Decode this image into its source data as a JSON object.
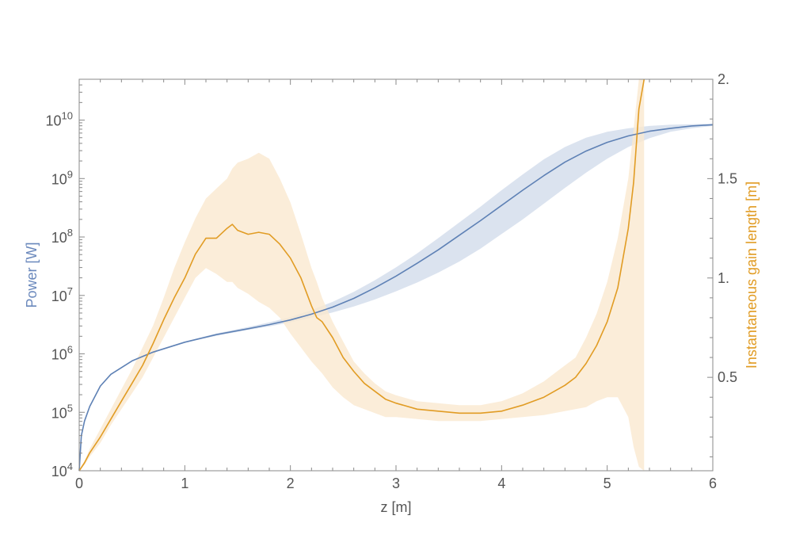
{
  "chart_data": {
    "type": "line",
    "xlabel": "z [m]",
    "ylabel_left": "Power [W]",
    "ylabel_right": "Instantaneous gain length [m]",
    "xlim": [
      0,
      6
    ],
    "ylim_left": [
      10000,
      50000000000
    ],
    "ylim_right": [
      0.03,
      2.0
    ],
    "left_scale": "log",
    "grid": false,
    "x_ticks": [
      {
        "value": 0,
        "label": "0"
      },
      {
        "value": 1,
        "label": "1"
      },
      {
        "value": 2,
        "label": "2"
      },
      {
        "value": 3,
        "label": "3"
      },
      {
        "value": 4,
        "label": "4"
      },
      {
        "value": 5,
        "label": "5"
      },
      {
        "value": 6,
        "label": "6"
      }
    ],
    "left_ticks": [
      {
        "exp": 4,
        "base": "10",
        "sup": "4"
      },
      {
        "exp": 5,
        "base": "10",
        "sup": "5"
      },
      {
        "exp": 6,
        "base": "10",
        "sup": "6"
      },
      {
        "exp": 7,
        "base": "10",
        "sup": "7"
      },
      {
        "exp": 8,
        "base": "10",
        "sup": "8"
      },
      {
        "exp": 9,
        "base": "10",
        "sup": "9"
      },
      {
        "exp": 10,
        "base": "10",
        "sup": "10"
      }
    ],
    "right_ticks": [
      {
        "value": 0.5,
        "label": "0.5"
      },
      {
        "value": 1.0,
        "label": "1."
      },
      {
        "value": 1.5,
        "label": "1.5"
      },
      {
        "value": 2.0,
        "label": "2."
      }
    ],
    "series": [
      {
        "axis": "left",
        "color": "#5E81B5",
        "band_color": "#D5DEEC",
        "x": [
          0,
          0.02,
          0.05,
          0.1,
          0.2,
          0.3,
          0.5,
          0.7,
          1.0,
          1.3,
          1.6,
          1.8,
          2.0,
          2.2,
          2.4,
          2.6,
          2.8,
          3.0,
          3.2,
          3.4,
          3.6,
          3.8,
          4.0,
          4.2,
          4.4,
          4.6,
          4.8,
          5.0,
          5.2,
          5.4,
          5.6,
          5.8,
          6.0
        ],
        "log10_y": [
          4.0,
          4.6,
          4.85,
          5.1,
          5.45,
          5.65,
          5.88,
          6.03,
          6.2,
          6.33,
          6.43,
          6.5,
          6.58,
          6.68,
          6.8,
          6.95,
          7.13,
          7.33,
          7.55,
          7.78,
          8.03,
          8.28,
          8.54,
          8.8,
          9.05,
          9.28,
          9.47,
          9.62,
          9.73,
          9.81,
          9.86,
          9.9,
          9.92
        ],
        "log10_band_low": [
          4.0,
          4.6,
          4.85,
          5.1,
          5.45,
          5.65,
          5.88,
          6.03,
          6.19,
          6.31,
          6.41,
          6.47,
          6.54,
          6.62,
          6.71,
          6.81,
          6.93,
          7.07,
          7.22,
          7.39,
          7.58,
          7.8,
          8.05,
          8.3,
          8.57,
          8.84,
          9.1,
          9.34,
          9.54,
          9.69,
          9.8,
          9.86,
          9.9
        ],
        "log10_band_high": [
          4.0,
          4.6,
          4.85,
          5.1,
          5.45,
          5.65,
          5.88,
          6.04,
          6.21,
          6.35,
          6.46,
          6.54,
          6.63,
          6.75,
          6.89,
          7.06,
          7.26,
          7.48,
          7.72,
          7.98,
          8.25,
          8.52,
          8.8,
          9.07,
          9.33,
          9.54,
          9.7,
          9.8,
          9.86,
          9.9,
          9.92,
          9.93,
          9.94
        ]
      },
      {
        "axis": "right",
        "color": "#E19C24",
        "band_color": "#FAE9CF",
        "x": [
          0,
          0.05,
          0.1,
          0.2,
          0.3,
          0.4,
          0.5,
          0.6,
          0.7,
          0.8,
          0.9,
          1.0,
          1.1,
          1.2,
          1.3,
          1.4,
          1.45,
          1.5,
          1.6,
          1.7,
          1.8,
          1.9,
          2.0,
          2.1,
          2.2,
          2.25,
          2.3,
          2.4,
          2.5,
          2.6,
          2.7,
          2.8,
          2.9,
          3.0,
          3.2,
          3.4,
          3.6,
          3.8,
          4.0,
          4.2,
          4.4,
          4.5,
          4.6,
          4.7,
          4.8,
          4.9,
          5.0,
          5.1,
          5.2,
          5.25,
          5.3,
          5.35
        ],
        "y": [
          0.03,
          0.07,
          0.12,
          0.2,
          0.29,
          0.38,
          0.47,
          0.56,
          0.67,
          0.79,
          0.9,
          1.0,
          1.12,
          1.2,
          1.2,
          1.25,
          1.27,
          1.24,
          1.22,
          1.23,
          1.22,
          1.17,
          1.1,
          1.0,
          0.86,
          0.8,
          0.78,
          0.7,
          0.6,
          0.53,
          0.47,
          0.43,
          0.39,
          0.37,
          0.34,
          0.33,
          0.32,
          0.32,
          0.33,
          0.36,
          0.4,
          0.43,
          0.46,
          0.5,
          0.57,
          0.66,
          0.78,
          0.95,
          1.25,
          1.48,
          1.85,
          2.05
        ],
        "band_low": [
          0.03,
          0.06,
          0.1,
          0.17,
          0.26,
          0.34,
          0.42,
          0.5,
          0.6,
          0.7,
          0.8,
          0.9,
          1.0,
          1.05,
          1.02,
          0.98,
          0.98,
          0.95,
          0.92,
          0.88,
          0.85,
          0.8,
          0.72,
          0.65,
          0.58,
          0.55,
          0.52,
          0.45,
          0.4,
          0.36,
          0.34,
          0.32,
          0.3,
          0.3,
          0.29,
          0.28,
          0.28,
          0.28,
          0.29,
          0.3,
          0.31,
          0.32,
          0.33,
          0.34,
          0.35,
          0.38,
          0.4,
          0.4,
          0.3,
          0.15,
          0.05,
          0.03
        ],
        "band_high": [
          0.03,
          0.08,
          0.14,
          0.24,
          0.34,
          0.44,
          0.54,
          0.65,
          0.76,
          0.9,
          1.05,
          1.18,
          1.3,
          1.4,
          1.45,
          1.5,
          1.55,
          1.58,
          1.6,
          1.63,
          1.6,
          1.5,
          1.38,
          1.22,
          1.05,
          0.98,
          0.9,
          0.78,
          0.68,
          0.58,
          0.52,
          0.47,
          0.43,
          0.41,
          0.38,
          0.37,
          0.36,
          0.36,
          0.38,
          0.42,
          0.48,
          0.52,
          0.56,
          0.6,
          0.7,
          0.82,
          0.98,
          1.2,
          1.5,
          1.75,
          2.05,
          2.1
        ]
      }
    ]
  }
}
